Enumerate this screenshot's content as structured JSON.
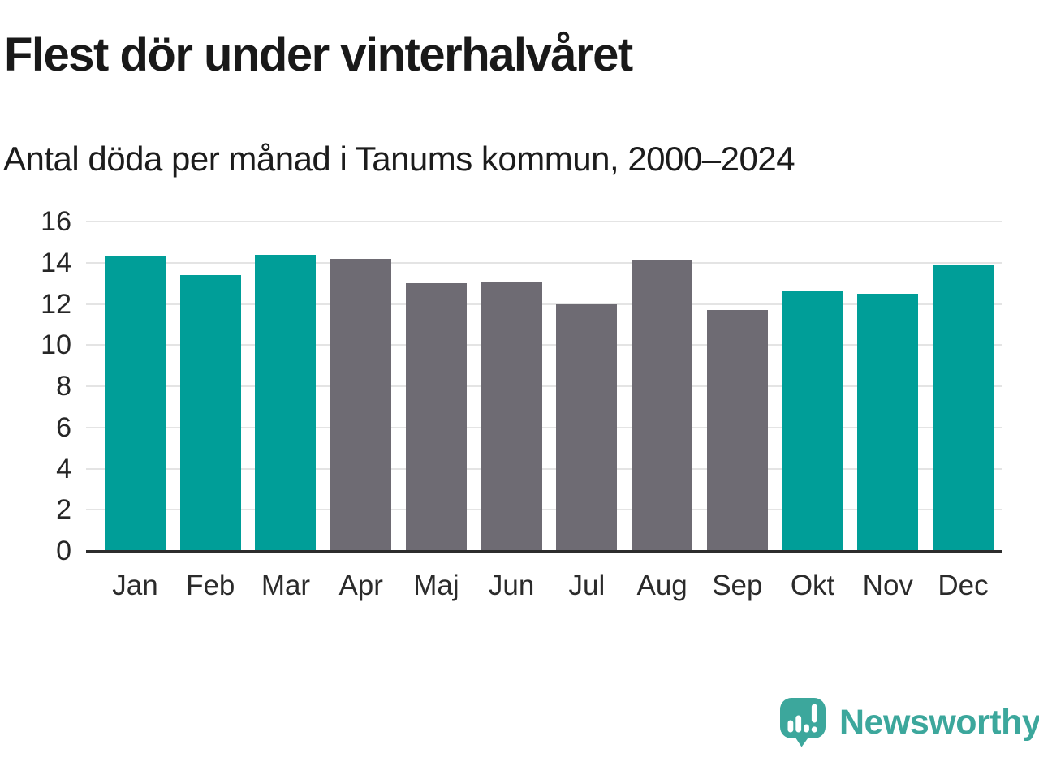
{
  "chart_data": {
    "type": "bar",
    "title": "Flest dör under vinterhalvåret",
    "subtitle": "Antal döda per månad i Tanums kommun, 2000–2024",
    "categories": [
      "Jan",
      "Feb",
      "Mar",
      "Apr",
      "Maj",
      "Jun",
      "Jul",
      "Aug",
      "Sep",
      "Okt",
      "Nov",
      "Dec"
    ],
    "values": [
      14.3,
      13.4,
      14.4,
      14.2,
      13.0,
      13.1,
      12.0,
      14.1,
      11.7,
      12.6,
      12.5,
      13.9
    ],
    "bar_colors": [
      "#009e98",
      "#009e98",
      "#009e98",
      "#6e6b73",
      "#6e6b73",
      "#6e6b73",
      "#6e6b73",
      "#6e6b73",
      "#6e6b73",
      "#009e98",
      "#009e98",
      "#009e98"
    ],
    "palette": {
      "winter_teal": "#009e98",
      "summer_gray": "#6e6b73"
    },
    "xlabel": "",
    "ylabel": "",
    "ylim": [
      0,
      16
    ],
    "yticks": [
      0,
      2,
      4,
      6,
      8,
      10,
      12,
      14,
      16
    ],
    "grid": "horizontal",
    "legend": false
  },
  "colors": {
    "background": "#ffffff",
    "grid_line": "#e4e4e4",
    "axis_line": "#2d2d2d",
    "title_text": "#191919",
    "tick_text": "#2b2b2b"
  },
  "branding": {
    "logo_text": "Newsworthy",
    "logo_color": "#3CA79C",
    "logo_icon": "newsworthy-speech-bubble-bar-chart-icon"
  }
}
